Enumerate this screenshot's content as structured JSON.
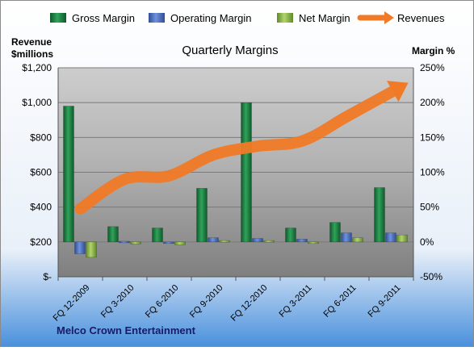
{
  "chart_data": {
    "type": "bar",
    "title": "Quarterly Margins",
    "company": "Melco Crown Entertainment",
    "left_axis_label": [
      "Revenue",
      "$millions"
    ],
    "right_axis_label": "Margin %",
    "categories": [
      "FQ 12-2009",
      "FQ 3-2010",
      "FQ 6-2010",
      "FQ 9-2010",
      "FQ 12-2010",
      "FQ 3-2011",
      "FQ 6-2011",
      "FQ 9-2011"
    ],
    "left_axis": {
      "min": 0,
      "max": 1200,
      "step": 200,
      "tick_labels": [
        "$-",
        "$200",
        "$400",
        "$600",
        "$800",
        "$1,000",
        "$1,200"
      ]
    },
    "right_axis": {
      "min": -50,
      "max": 250,
      "step": 50,
      "tick_labels": [
        "-50%",
        "0%",
        "50%",
        "100%",
        "150%",
        "200%",
        "250%"
      ]
    },
    "legend_position": "top",
    "grid": true,
    "series": [
      {
        "name": "Gross Margin",
        "axis": "right",
        "kind": "bar",
        "color": "#1e8a48",
        "values": [
          195,
          22,
          20,
          77,
          200,
          20,
          28,
          78
        ]
      },
      {
        "name": "Operating Margin",
        "axis": "right",
        "kind": "bar",
        "color": "#4a70c2",
        "values": [
          -17,
          1,
          0,
          6,
          5,
          4,
          13,
          13
        ]
      },
      {
        "name": "Net Margin",
        "axis": "right",
        "kind": "bar",
        "color": "#8fba4a",
        "values": [
          -22,
          -3,
          -4,
          2,
          2,
          0,
          6,
          10
        ]
      },
      {
        "name": "Revenues",
        "axis": "left",
        "kind": "line",
        "color": "#f07a26",
        "values": [
          390,
          560,
          580,
          700,
          750,
          780,
          920,
          1060
        ]
      }
    ]
  }
}
